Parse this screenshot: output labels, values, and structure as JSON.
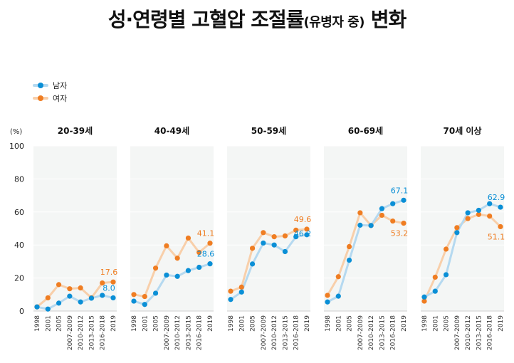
{
  "title": "성·연령별 고혈압 조절률",
  "title_sub": "(유병자 중)",
  "title_tail": " 변화",
  "legend": [
    {
      "name": "남자",
      "color": "#0a8fd6",
      "line_color": "#b5d9f0"
    },
    {
      "name": "여자",
      "color": "#ef7d22",
      "line_color": "#f8cfaa"
    }
  ],
  "chart_data": {
    "type": "line",
    "ylabel": "(%)",
    "ylim": [
      0,
      100
    ],
    "yticks": [
      0,
      20,
      40,
      60,
      80,
      100
    ],
    "grid": true,
    "categories": [
      "1998",
      "2001",
      "2005",
      "2007-2009",
      "2010-2012",
      "2013-2015",
      "2016-2018",
      "2019"
    ],
    "panels": [
      {
        "title": "20-39세",
        "series": [
          {
            "name": "남자",
            "values": [
              2.5,
              1.2,
              4.8,
              9.0,
              5.5,
              7.8,
              9.5,
              8.0
            ]
          },
          {
            "name": "여자",
            "values": [
              2.5,
              8.0,
              16.0,
              13.5,
              14.0,
              8.0,
              17.0,
              17.6
            ]
          }
        ],
        "labels": {
          "male": "8.0",
          "female": "17.6"
        }
      },
      {
        "title": "40-49세",
        "series": [
          {
            "name": "남자",
            "values": [
              6.0,
              4.0,
              10.8,
              21.8,
              21.0,
              24.5,
              26.5,
              28.6
            ]
          },
          {
            "name": "여자",
            "values": [
              10.0,
              8.8,
              26.0,
              39.5,
              32.0,
              44.2,
              35.5,
              41.1
            ]
          }
        ],
        "labels": {
          "male": "28.6",
          "female": "41.1"
        }
      },
      {
        "title": "50-59세",
        "series": [
          {
            "name": "남자",
            "values": [
              7.0,
              11.5,
              28.5,
              41.2,
              40.0,
              36.0,
              45.0,
              46.2
            ]
          },
          {
            "name": "여자",
            "values": [
              12.0,
              14.5,
              38.0,
              47.5,
              45.0,
              45.5,
              49.0,
              49.6
            ]
          }
        ],
        "labels": {
          "male": "46.2",
          "female": "49.6"
        }
      },
      {
        "title": "60-69세",
        "series": [
          {
            "name": "남자",
            "values": [
              5.5,
              9.0,
              30.8,
              52.0,
              51.8,
              62.0,
              65.0,
              67.1
            ]
          },
          {
            "name": "여자",
            "values": [
              9.5,
              20.8,
              39.0,
              59.5,
              51.8,
              58.0,
              54.5,
              53.2
            ]
          }
        ],
        "labels": {
          "male": "67.1",
          "female": "53.2"
        }
      },
      {
        "title": "70세 이상",
        "series": [
          {
            "name": "남자",
            "values": [
              8.5,
              12.0,
              22.0,
              47.5,
              59.5,
              61.0,
              65.0,
              62.9
            ]
          },
          {
            "name": "여자",
            "values": [
              6.0,
              20.5,
              37.5,
              50.5,
              56.0,
              58.5,
              57.5,
              51.1
            ]
          }
        ],
        "labels": {
          "male": "62.9",
          "female": "51.1"
        }
      }
    ]
  }
}
